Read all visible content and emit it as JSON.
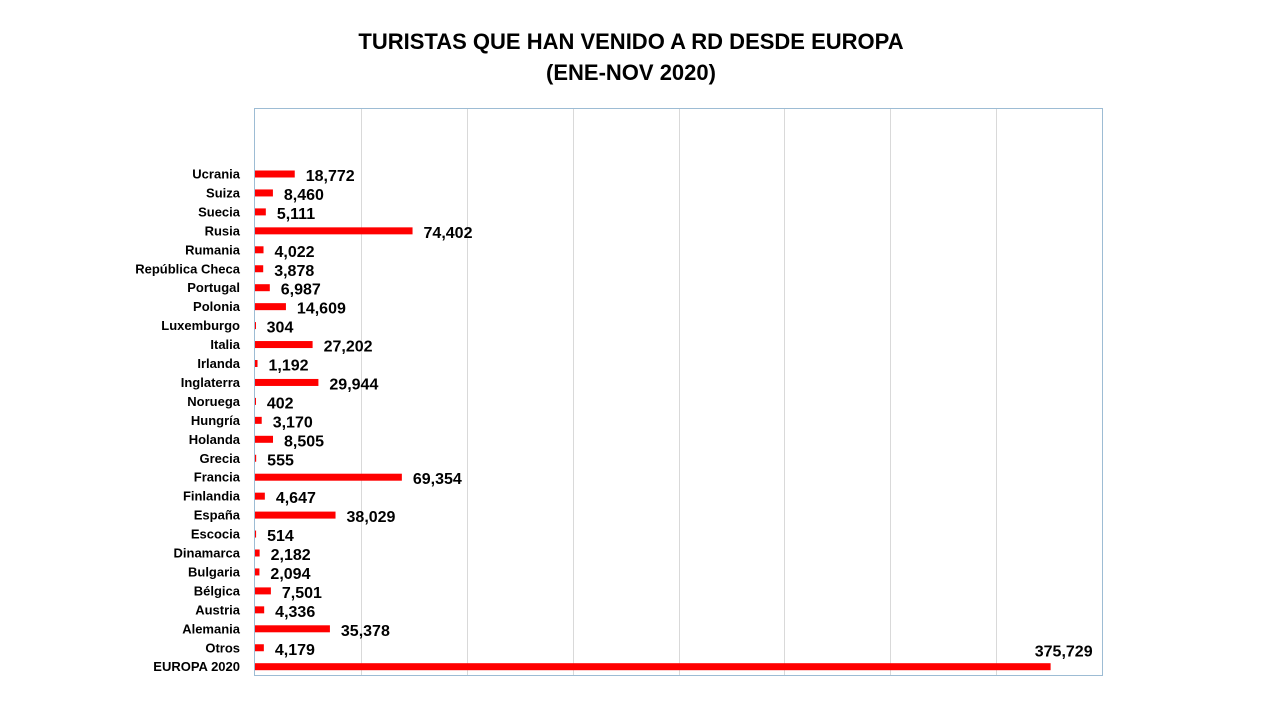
{
  "chart_data": {
    "type": "bar",
    "orientation": "horizontal",
    "title_lines": [
      "TURISTAS QUE HAN VENIDO A RD DESDE EUROPA",
      "(ENE-NOV 2020)"
    ],
    "categories": [
      "Ucrania",
      "Suiza",
      "Suecia",
      "Rusia",
      "Rumania",
      "República Checa",
      "Portugal",
      "Polonia",
      "Luxemburgo",
      "Italia",
      "Irlanda",
      "Inglaterra",
      "Noruega",
      "Hungría",
      "Holanda",
      "Grecia",
      "Francia",
      "Finlandia",
      "España",
      "Escocia",
      "Dinamarca",
      "Bulgaria",
      "Bélgica",
      "Austria",
      "Alemania",
      "Otros",
      "EUROPA 2020"
    ],
    "values": [
      18772,
      8460,
      5111,
      74402,
      4022,
      3878,
      6987,
      14609,
      304,
      27202,
      1192,
      29944,
      402,
      3170,
      8505,
      555,
      69354,
      4647,
      38029,
      514,
      2182,
      2094,
      7501,
      4336,
      35378,
      4179,
      375729
    ],
    "value_labels": [
      "18,772",
      "8,460",
      "5,111",
      "74,402",
      "4,022",
      "3,878",
      "6,987",
      "14,609",
      "304",
      "27,202",
      "1,192",
      "29,944",
      "402",
      "3,170",
      "8,505",
      "555",
      "69,354",
      "4,647",
      "38,029",
      "514",
      "2,182",
      "2,094",
      "7,501",
      "4,336",
      "35,378",
      "4,179",
      "375,729"
    ],
    "xlim": [
      0,
      400000
    ],
    "x_gridlines": [
      50000,
      100000,
      150000,
      200000,
      250000,
      300000,
      350000
    ],
    "grid": true,
    "legend": "none",
    "bar_color": "#ff0000",
    "grid_color": "#d9d9d9",
    "frame_color": "#9dbcd4"
  }
}
